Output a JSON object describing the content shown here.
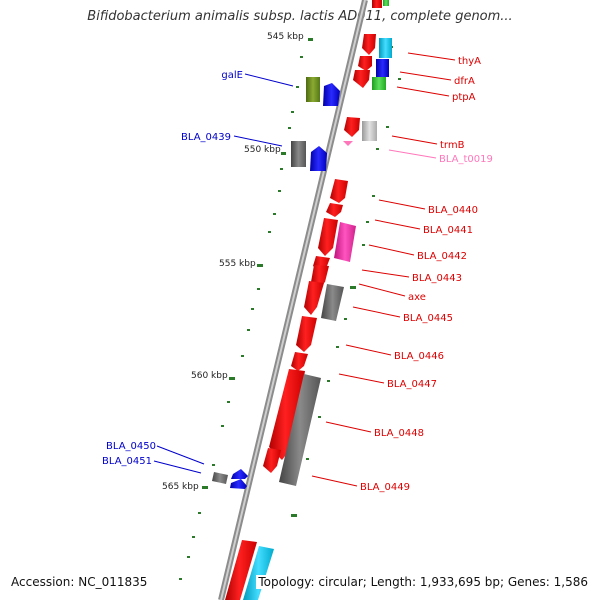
{
  "title": "Bifidobacterium animalis subsp. lactis AD011, complete genom...",
  "footer": {
    "accession": "Accession: NC_011835",
    "info": "Topology: circular; Length: 1,933,695 bp; Genes: 1,586"
  },
  "scale": {
    "ticks": [
      "545 kbp",
      "550 kbp",
      "555 kbp",
      "560 kbp",
      "565 kbp"
    ]
  },
  "colors": {
    "cds_forward": "#ff1a1a",
    "cds_other": "#707070",
    "blue_label": "#0000cc",
    "red_label": "#dd0000",
    "trna_label": "#ff77bb",
    "scale_dots": "#2a7a2a"
  },
  "genes": [
    {
      "name": "thyA",
      "color": "#ff1a1a"
    },
    {
      "name": "dfrA",
      "color": "#ff1a1a"
    },
    {
      "name": "ptpA",
      "color": "#ff1a1a"
    },
    {
      "name": "galE",
      "color": "#0000cc"
    },
    {
      "name": "trmB",
      "color": "#dd0000"
    },
    {
      "name": "BLA_t0019",
      "color": "#ff77bb"
    },
    {
      "name": "BLA_0439",
      "color": "#0000cc"
    },
    {
      "name": "BLA_0440",
      "color": "#dd0000"
    },
    {
      "name": "BLA_0441",
      "color": "#dd0000"
    },
    {
      "name": "BLA_0442",
      "color": "#dd0000"
    },
    {
      "name": "BLA_0443",
      "color": "#dd0000"
    },
    {
      "name": "axe",
      "color": "#dd0000"
    },
    {
      "name": "BLA_0445",
      "color": "#dd0000"
    },
    {
      "name": "BLA_0446",
      "color": "#dd0000"
    },
    {
      "name": "BLA_0447",
      "color": "#dd0000"
    },
    {
      "name": "BLA_0448",
      "color": "#dd0000"
    },
    {
      "name": "BLA_0449",
      "color": "#dd0000"
    },
    {
      "name": "BLA_0450",
      "color": "#0000cc"
    },
    {
      "name": "BLA_0451",
      "color": "#0000cc"
    }
  ]
}
